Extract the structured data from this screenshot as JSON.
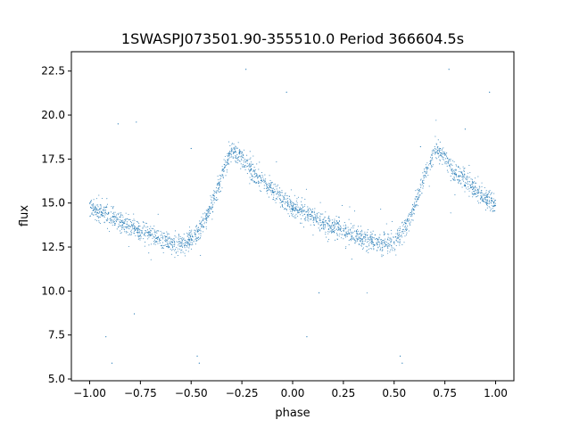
{
  "chart_data": {
    "type": "scatter",
    "title": "1SWASPJ073501.90-355510.0 Period 366604.5s",
    "xlabel": "phase",
    "ylabel": "flux",
    "xlim": [
      -1.09,
      1.09
    ],
    "ylim": [
      4.9,
      23.6
    ],
    "grid": false,
    "legend": "none",
    "color": "#1f77b4",
    "xticks": [
      -1.0,
      -0.75,
      -0.5,
      -0.25,
      0.0,
      0.25,
      0.5,
      0.75,
      1.0
    ],
    "xtick_labels": [
      "−1.00",
      "−0.75",
      "−0.50",
      "−0.25",
      "0.00",
      "0.25",
      "0.50",
      "0.75",
      "1.00"
    ],
    "yticks": [
      5.0,
      7.5,
      10.0,
      12.5,
      15.0,
      17.5,
      20.0,
      22.5
    ],
    "ytick_labels": [
      "5.0",
      "7.5",
      "10.0",
      "12.5",
      "15.0",
      "17.5",
      "20.0",
      "22.5"
    ],
    "phase_period": 1.0,
    "light_curve_profile": {
      "phase": [
        0.0,
        0.1,
        0.2,
        0.3,
        0.4,
        0.45,
        0.5,
        0.55,
        0.6,
        0.65,
        0.7,
        0.75,
        0.8,
        0.9,
        1.0
      ],
      "flux": [
        14.8,
        14.2,
        13.6,
        13.2,
        12.7,
        12.7,
        12.9,
        13.5,
        14.8,
        16.5,
        18.0,
        17.6,
        16.8,
        15.7,
        14.8
      ]
    },
    "outliers": [
      {
        "x": -0.86,
        "y": 19.5
      },
      {
        "x": -0.77,
        "y": 19.6
      },
      {
        "x": -0.5,
        "y": 18.1
      },
      {
        "x": -0.47,
        "y": 6.3
      },
      {
        "x": -0.46,
        "y": 5.9
      },
      {
        "x": -0.92,
        "y": 7.4
      },
      {
        "x": -0.89,
        "y": 5.9
      },
      {
        "x": -0.78,
        "y": 8.7
      },
      {
        "x": -0.23,
        "y": 22.6
      },
      {
        "x": -0.03,
        "y": 21.3
      },
      {
        "x": 0.07,
        "y": 7.4
      },
      {
        "x": 0.13,
        "y": 9.9
      },
      {
        "x": 0.53,
        "y": 6.3
      },
      {
        "x": 0.54,
        "y": 5.9
      },
      {
        "x": 0.77,
        "y": 22.6
      },
      {
        "x": 0.97,
        "y": 21.3
      },
      {
        "x": 0.63,
        "y": 18.2
      },
      {
        "x": 0.85,
        "y": 19.2
      }
    ]
  }
}
